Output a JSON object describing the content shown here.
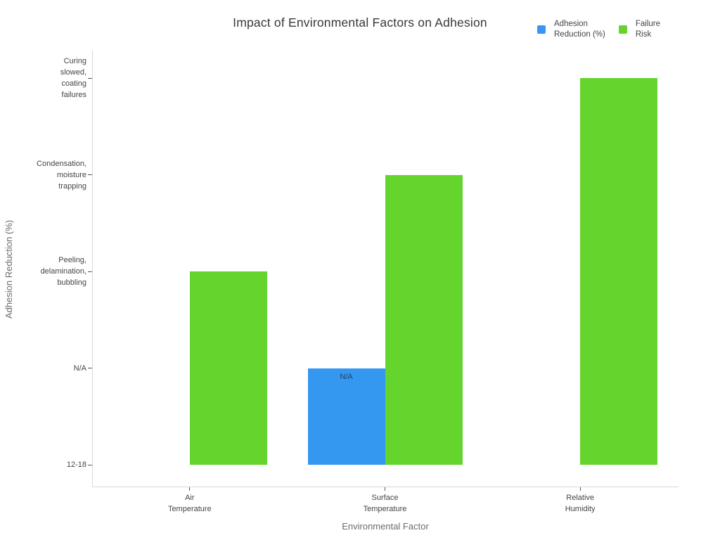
{
  "title": "Impact of Environmental Factors on Adhesion",
  "legend": {
    "items": [
      {
        "id": "adhesion-reduction",
        "label": "Adhesion\nReduction (%)",
        "color": "#3598f0"
      },
      {
        "id": "failure-risk",
        "label": "Failure\nRisk",
        "color": "#65d42c"
      }
    ]
  },
  "x_axis": {
    "title": "Environmental Factor",
    "tick_labels": [
      "Air\nTemperature",
      "Surface\nTemperature",
      "Relative\nHumidity"
    ]
  },
  "y_axis": {
    "title": "Adhesion Reduction (%)",
    "tick_labels": [
      "12-18",
      "N/A",
      "Peeling,\ndelamination,\nbubbling",
      "Condensation,\nmoisture\ntrapping",
      "Curing\nslowed,\ncoating\nfailures"
    ]
  },
  "chart_data": {
    "type": "bar",
    "orientation": "vertical",
    "title": "Impact of Environmental Factors on Adhesion",
    "xlabel": "Environmental Factor",
    "ylabel": "Adhesion Reduction (%)",
    "categories": [
      "Air Temperature",
      "Surface Temperature",
      "Relative Humidity"
    ],
    "y_scale_categories": [
      "12-18",
      "N/A",
      "Peeling, delamination, bubbling",
      "Condensation, moisture trapping",
      "Curing slowed, coating failures"
    ],
    "series": [
      {
        "name": "Adhesion Reduction (%)",
        "color": "#3598f0",
        "values": [
          "12-18",
          "N/A",
          "12-18"
        ],
        "levels": [
          0,
          1,
          0
        ],
        "bar_labels": [
          "",
          "N/A",
          ""
        ]
      },
      {
        "name": "Failure Risk",
        "color": "#65d42c",
        "values": [
          "Peeling, delamination, bubbling",
          "Condensation, moisture trapping",
          "Curing slowed, coating failures"
        ],
        "levels": [
          2,
          3,
          4
        ],
        "bar_labels": [
          "",
          "",
          ""
        ]
      }
    ],
    "legend_position": "top-right",
    "grid": false
  }
}
